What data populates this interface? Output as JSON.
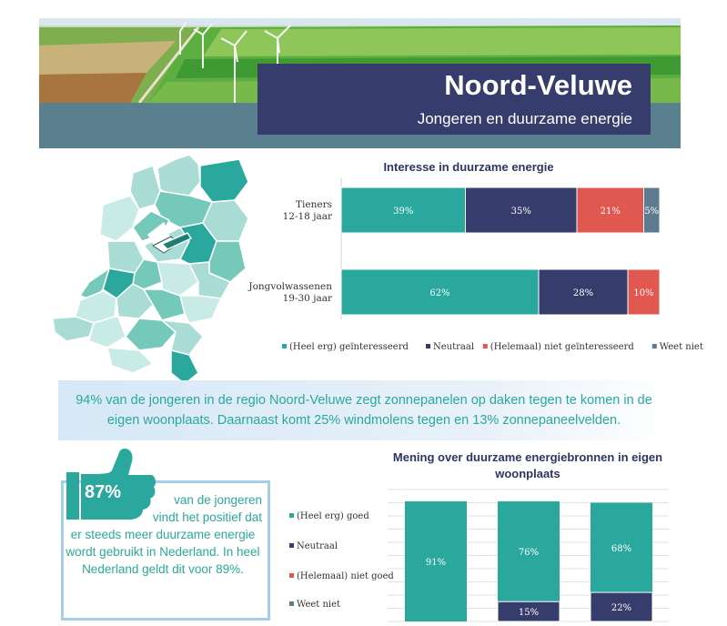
{
  "header": {
    "title": "Noord-Veluwe",
    "subtitle": "Jongeren en duurzame energie"
  },
  "colors": {
    "teal": "#2ba89d",
    "navy": "#363c6b",
    "red": "#e0584f",
    "grey": "#5d7b8e"
  },
  "statement": "94% van de jongeren in de regio Noord-Veluwe zegt zonnepanelen op daken tegen te komen in de eigen woonplaats. Daarnaast komt 25% windmolens tegen en 13% zonnepaneelvelden.",
  "highlight": {
    "percent": "87%",
    "line1": "van de jongeren",
    "line2": "vindt het positief dat",
    "rest": "er steeds meer duurzame energie wordt gebruikt in Nederland. In heel Nederland geldt dit voor 89%.",
    "icon": "thumbs-up-icon"
  },
  "chart_data": [
    {
      "type": "bar",
      "orientation": "horizontal",
      "stacked": true,
      "title": "Interesse in duurzame energie",
      "categories": [
        "Tieners 12-18 jaar",
        "Jongvolwassenen 19-30 jaar"
      ],
      "category_lines": [
        [
          "Tieners",
          "12-18 jaar"
        ],
        [
          "Jongvolwassenen",
          "19-30 jaar"
        ]
      ],
      "series": [
        {
          "name": "(Heel erg) geïnteresseerd",
          "values": [
            39,
            62
          ],
          "color": "#2ba89d"
        },
        {
          "name": "Neutraal",
          "values": [
            35,
            28
          ],
          "color": "#363c6b"
        },
        {
          "name": "(Helemaal) niet geïnteresseerd",
          "values": [
            21,
            10
          ],
          "color": "#e0584f"
        },
        {
          "name": "Weet niet",
          "values": [
            5,
            0
          ],
          "color": "#5d7b8e"
        }
      ],
      "labels": [
        [
          "39%",
          "35%",
          "21%",
          "5%"
        ],
        [
          "62%",
          "28%",
          "10%",
          ""
        ]
      ],
      "xlim": [
        0,
        100
      ],
      "legend": "bottom"
    },
    {
      "type": "bar",
      "orientation": "vertical",
      "stacked": true,
      "title": "Mening over duurzame energiebronnen in eigen woonplaats",
      "categories": [
        "",
        "",
        ""
      ],
      "series": [
        {
          "name": "(Heel erg) goed",
          "values": [
            91,
            76,
            68
          ],
          "color": "#2ba89d"
        },
        {
          "name": "Neutraal",
          "values": [
            0,
            15,
            22
          ],
          "color": "#363c6b"
        },
        {
          "name": "(Helemaal) niet goed",
          "values": [
            0,
            0,
            0
          ],
          "color": "#e0584f"
        },
        {
          "name": "Weet niet",
          "values": [
            0,
            0,
            0
          ],
          "color": "#5d7b8e"
        }
      ],
      "labels": [
        [
          "91%",
          "",
          "",
          ""
        ],
        [
          "76%",
          "15%",
          "",
          ""
        ],
        [
          "68%",
          "22%",
          "",
          ""
        ]
      ],
      "ylim": [
        0,
        100
      ],
      "grid": true,
      "legend": "left"
    }
  ]
}
